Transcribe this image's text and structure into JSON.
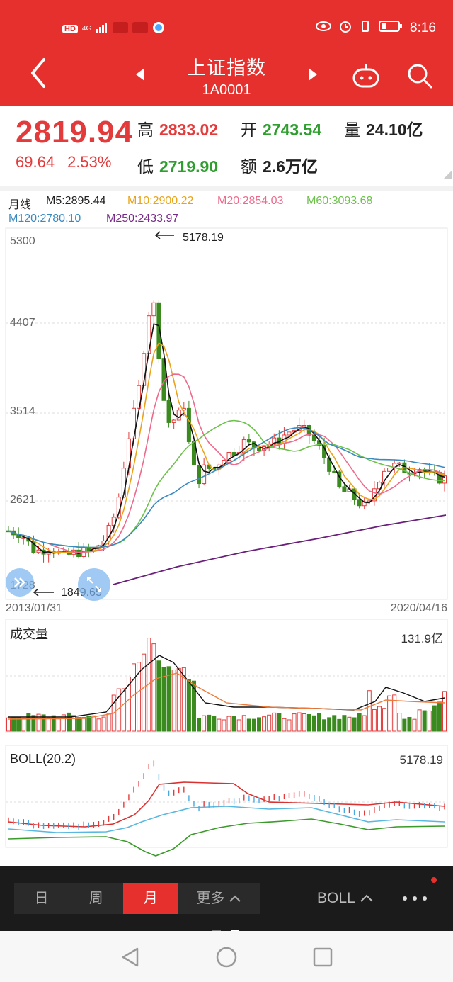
{
  "status": {
    "time": "8:16",
    "network": "4G",
    "hd": "HD"
  },
  "header": {
    "title": "上证指数",
    "code": "1A0001"
  },
  "quote": {
    "price": "2819.94",
    "change": "69.64",
    "change_pct": "2.53%",
    "high_label": "高",
    "high": "2833.02",
    "open_label": "开",
    "open": "2743.54",
    "volume_label": "量",
    "volume": "24.10亿",
    "low_label": "低",
    "low": "2719.90",
    "amount_label": "额",
    "amount": "2.6万亿"
  },
  "kline": {
    "period_label": "月线",
    "ma": {
      "m5": "M5:2895.44",
      "m10": "M10:2900.22",
      "m20": "M20:2854.03",
      "m60": "M60:3093.68",
      "m120": "M120:2780.10",
      "m250": "M250:2433.97"
    },
    "ticks": [
      "5300",
      "4407",
      "3514",
      "2621",
      "1728"
    ],
    "high_marker": "5178.19",
    "low_marker": "1849.65",
    "date_start": "2013/01/31",
    "date_end": "2020/04/16"
  },
  "volume_panel": {
    "title": "成交量",
    "max": "131.9亿"
  },
  "boll_panel": {
    "title": "BOLL(20.2)",
    "max": "5178.19"
  },
  "bottom": {
    "tabs": [
      "日",
      "周",
      "月",
      "更多"
    ],
    "indicator": "BOLL"
  },
  "colors": {
    "accent": "#e5302e",
    "up": "#e33b3b",
    "down": "#2f9e2f"
  }
}
